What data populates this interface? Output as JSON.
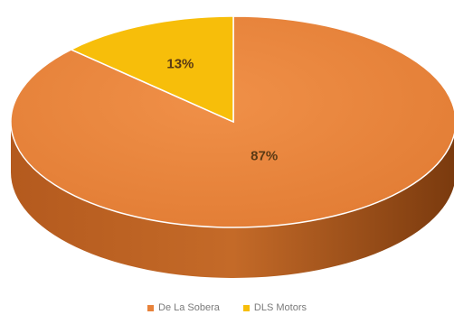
{
  "chart_data": {
    "type": "pie",
    "series": [
      {
        "name": "De La Sobera",
        "value": 87,
        "label": "87%",
        "color": "#E8823A"
      },
      {
        "name": "DLS Motors",
        "value": 13,
        "label": "13%",
        "color": "#F7BE0A"
      }
    ],
    "legend_position": "bottom",
    "style": "3d"
  }
}
